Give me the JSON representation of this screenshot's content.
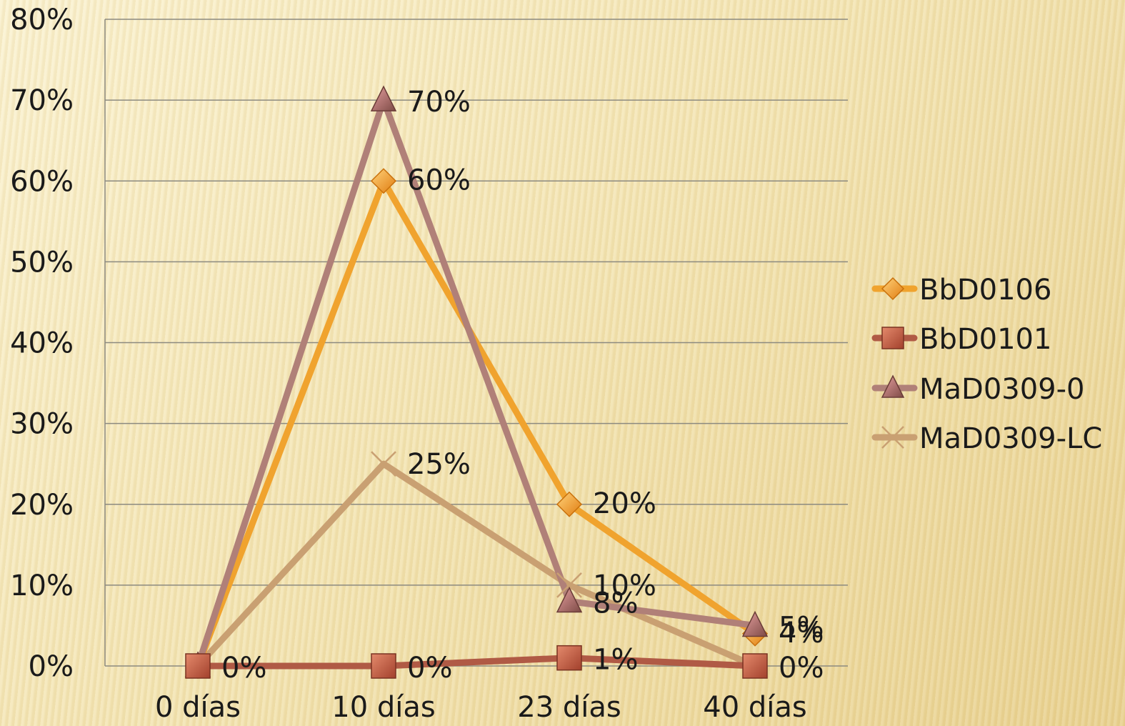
{
  "chart_data": {
    "type": "line",
    "categories": [
      "0 días",
      "10 días",
      "23 días",
      "40 días"
    ],
    "ylim": [
      0,
      80
    ],
    "yticks": [
      "0%",
      "10%",
      "20%",
      "30%",
      "40%",
      "50%",
      "60%",
      "70%",
      "80%"
    ],
    "grid": true,
    "legend_position": "right",
    "series": [
      {
        "name": "BbD0106",
        "values": [
          0,
          60,
          20,
          4
        ],
        "labels": [
          "",
          "60%",
          "20%",
          "4%"
        ],
        "color": "#f0a32e",
        "marker": "diamond"
      },
      {
        "name": "BbD0101",
        "values": [
          0,
          0,
          1,
          0
        ],
        "labels": [
          "0%",
          "0%",
          "1%",
          "0%"
        ],
        "color": "#b05a45",
        "marker": "square"
      },
      {
        "name": "MaD0309-0",
        "values": [
          0,
          70,
          8,
          5
        ],
        "labels": [
          "",
          "70%",
          "8%",
          "5%"
        ],
        "color": "#b08078",
        "marker": "triangle"
      },
      {
        "name": "MaD0309-LC",
        "values": [
          0,
          25,
          10,
          0
        ],
        "labels": [
          "",
          "25%",
          "10%",
          ""
        ],
        "color": "#c9a072",
        "marker": "x"
      }
    ]
  }
}
